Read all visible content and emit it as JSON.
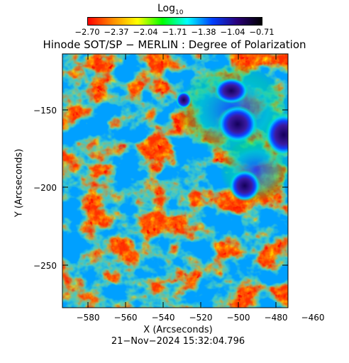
{
  "colorbar": {
    "title": "Log",
    "title_subscript": "10",
    "ticks": [
      "−2.70",
      "−2.37",
      "−2.04",
      "−1.71",
      "−1.38",
      "−1.04",
      "−0.71"
    ],
    "colormap_stops": [
      "#ff0000",
      "#ff8c00",
      "#ffff00",
      "#00ff00",
      "#00ffff",
      "#0040ff",
      "#2a007a",
      "#000000"
    ]
  },
  "plot": {
    "title": "Hinode SOT/SP − MERLIN : Degree of Polarization",
    "x_axis_title": "X (Arcseconds)",
    "y_axis_title": "Y (Arcseconds)",
    "x_ticks": [
      "−580",
      "−560",
      "−540",
      "−520",
      "−500",
      "−480",
      "−460"
    ],
    "y_ticks": [
      "−150",
      "−200",
      "−250"
    ],
    "timestamp": "21−Nov−2024 15:32:04.796"
  }
}
